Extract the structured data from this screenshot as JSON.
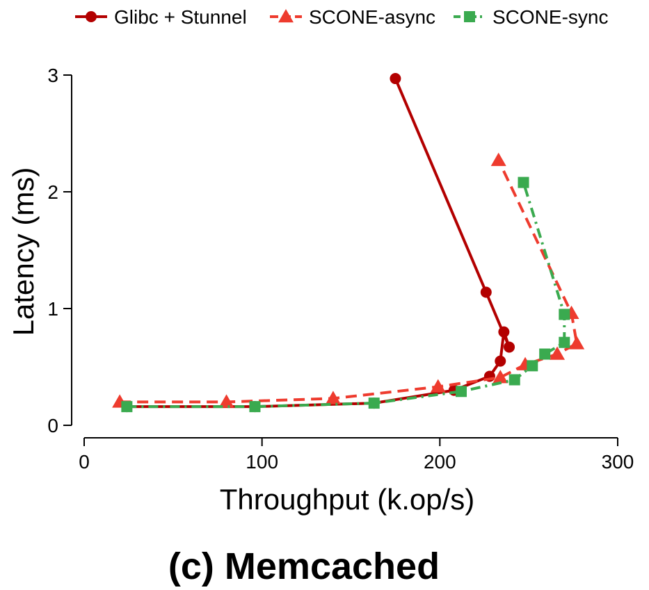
{
  "chart_data": {
    "type": "line",
    "xlabel": "Throughput (k.op/s)",
    "ylabel": "Latency (ms)",
    "xlim": [
      0,
      300
    ],
    "ylim": [
      0,
      3
    ],
    "xticks": [
      0,
      100,
      200,
      300
    ],
    "yticks": [
      0,
      1,
      2,
      3
    ],
    "grid": false,
    "legend_position": "top",
    "caption": "(c) Memcached",
    "series": [
      {
        "name": "Glibc + Stunnel",
        "color": "#b30000",
        "marker": "circle",
        "line_style": "solid",
        "x": [
          24,
          96,
          163,
          208,
          228,
          234,
          236,
          239,
          226,
          175
        ],
        "y": [
          0.16,
          0.16,
          0.19,
          0.3,
          0.42,
          0.55,
          0.8,
          0.67,
          1.14,
          2.97
        ]
      },
      {
        "name": "SCONE-async",
        "color": "#ee3b2e",
        "marker": "triangle",
        "line_style": "dashed",
        "x": [
          20,
          80,
          140,
          199,
          234,
          248,
          266,
          277,
          274,
          233
        ],
        "y": [
          0.2,
          0.2,
          0.23,
          0.33,
          0.41,
          0.52,
          0.61,
          0.7,
          0.96,
          2.27
        ]
      },
      {
        "name": "SCONE-sync",
        "color": "#3aaa4f",
        "marker": "square",
        "line_style": "dashdot",
        "x": [
          24,
          96,
          163,
          212,
          242,
          252,
          259,
          270,
          270,
          247
        ],
        "y": [
          0.16,
          0.16,
          0.19,
          0.29,
          0.39,
          0.51,
          0.61,
          0.71,
          0.95,
          2.08
        ]
      }
    ]
  }
}
